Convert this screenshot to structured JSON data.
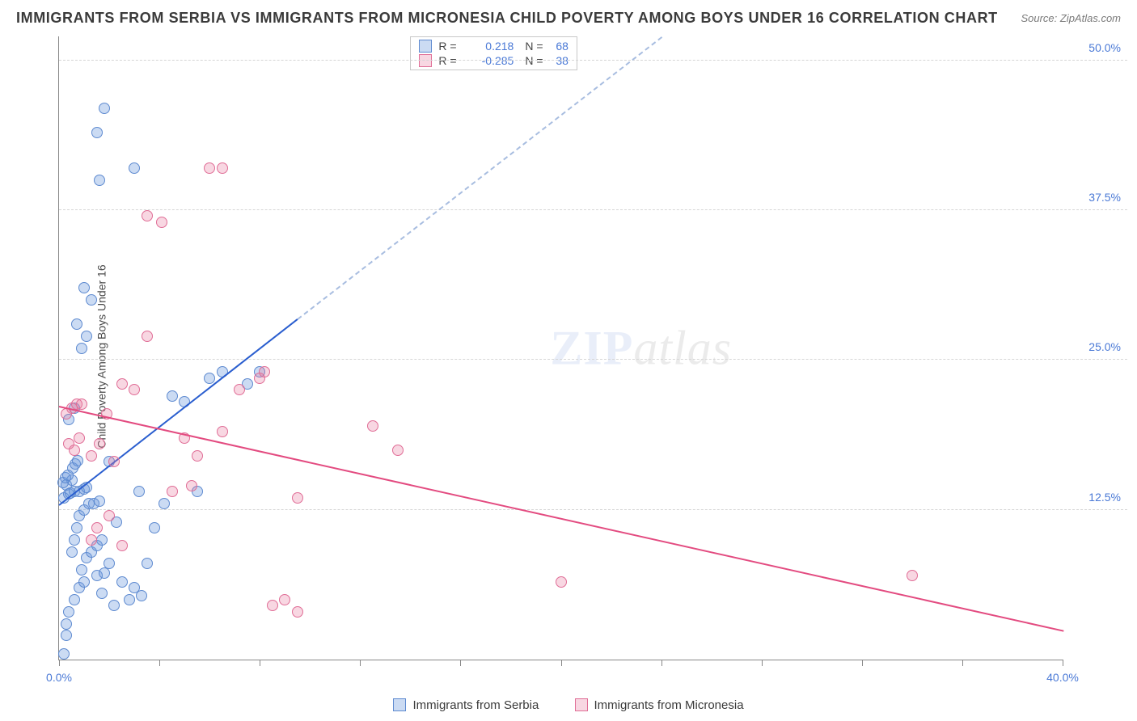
{
  "title": "IMMIGRANTS FROM SERBIA VS IMMIGRANTS FROM MICRONESIA CHILD POVERTY AMONG BOYS UNDER 16 CORRELATION CHART",
  "source": "Source: ZipAtlas.com",
  "ylabel": "Child Poverty Among Boys Under 16",
  "watermark_zip": "ZIP",
  "watermark_atlas": "atlas",
  "chart": {
    "type": "scatter",
    "xlim": [
      0,
      40
    ],
    "ylim": [
      0,
      52
    ],
    "x_ticks": [
      0,
      4,
      8,
      12,
      16,
      20,
      24,
      28,
      32,
      36,
      40
    ],
    "x_tick_labels": {
      "0": "0.0%",
      "40": "40.0%"
    },
    "y_grid": [
      12.5,
      25.0,
      37.5,
      50.0
    ],
    "y_grid_labels": [
      "12.5%",
      "25.0%",
      "37.5%",
      "50.0%"
    ],
    "background_color": "#ffffff",
    "grid_color": "#d6d6d6",
    "axis_color": "#888888",
    "label_color": "#4a79d6",
    "series": [
      {
        "name": "Immigrants from Serbia",
        "color_fill": "rgba(106,151,220,0.35)",
        "color_stroke": "#5e8ad0",
        "r": "0.218",
        "n": "68",
        "trend": {
          "x1": 0,
          "y1": 13.0,
          "x2": 9.5,
          "y2": 28.5,
          "ext_x2": 24,
          "ext_y2": 52,
          "color": "#2a5ecf",
          "dash_color": "#a8bde0"
        },
        "points": [
          [
            0.2,
            0.5
          ],
          [
            0.3,
            2
          ],
          [
            0.4,
            4
          ],
          [
            0.6,
            5
          ],
          [
            0.8,
            6
          ],
          [
            1.0,
            6.5
          ],
          [
            1.5,
            7
          ],
          [
            1.8,
            7.2
          ],
          [
            2.0,
            8
          ],
          [
            0.3,
            3
          ],
          [
            0.5,
            9
          ],
          [
            0.6,
            10
          ],
          [
            0.7,
            11
          ],
          [
            0.8,
            12
          ],
          [
            1.0,
            12.5
          ],
          [
            1.2,
            13
          ],
          [
            1.4,
            13
          ],
          [
            1.6,
            13.2
          ],
          [
            0.2,
            13.5
          ],
          [
            0.4,
            13.8
          ],
          [
            0.6,
            14
          ],
          [
            0.8,
            14
          ],
          [
            1.0,
            14.2
          ],
          [
            1.1,
            14.4
          ],
          [
            0.3,
            14.6
          ],
          [
            0.5,
            15
          ],
          [
            0.4,
            20
          ],
          [
            0.6,
            21
          ],
          [
            0.9,
            26
          ],
          [
            1.1,
            27
          ],
          [
            0.7,
            28
          ],
          [
            1.3,
            30
          ],
          [
            1.0,
            31
          ],
          [
            1.6,
            40
          ],
          [
            1.5,
            44
          ],
          [
            1.8,
            46
          ],
          [
            3.0,
            41
          ],
          [
            2.5,
            6.5
          ],
          [
            3.0,
            6
          ],
          [
            3.2,
            14
          ],
          [
            3.5,
            8
          ],
          [
            3.8,
            11
          ],
          [
            4.2,
            13
          ],
          [
            4.5,
            22
          ],
          [
            5.0,
            21.5
          ],
          [
            5.5,
            14
          ],
          [
            6.0,
            23.5
          ],
          [
            6.5,
            24
          ],
          [
            7.5,
            23
          ],
          [
            8.0,
            24
          ],
          [
            2.2,
            4.5
          ],
          [
            2.8,
            5
          ],
          [
            3.3,
            5.3
          ],
          [
            1.7,
            5.5
          ],
          [
            2.3,
            11.5
          ],
          [
            0.9,
            7.5
          ],
          [
            1.1,
            8.5
          ],
          [
            1.3,
            9
          ],
          [
            1.5,
            9.5
          ],
          [
            1.7,
            10
          ],
          [
            0.15,
            14.8
          ],
          [
            0.25,
            15.2
          ],
          [
            0.35,
            15.4
          ],
          [
            0.45,
            13.9
          ],
          [
            0.55,
            16
          ],
          [
            0.65,
            16.3
          ],
          [
            0.75,
            16.6
          ],
          [
            2.0,
            16.5
          ]
        ]
      },
      {
        "name": "Immigrants from Micronesia",
        "color_fill": "rgba(232,121,160,0.30)",
        "color_stroke": "#e06d96",
        "r": "-0.285",
        "n": "38",
        "trend": {
          "x1": 0,
          "y1": 21.2,
          "x2": 40,
          "y2": 2.5,
          "color": "#e34b80"
        },
        "points": [
          [
            0.3,
            20.5
          ],
          [
            0.5,
            21
          ],
          [
            0.7,
            21.3
          ],
          [
            0.9,
            21.3
          ],
          [
            0.4,
            18
          ],
          [
            0.6,
            17.5
          ],
          [
            0.8,
            18.5
          ],
          [
            1.3,
            10
          ],
          [
            1.5,
            11
          ],
          [
            2.0,
            12
          ],
          [
            2.5,
            9.5
          ],
          [
            1.3,
            17
          ],
          [
            1.6,
            18
          ],
          [
            1.9,
            20.5
          ],
          [
            2.5,
            23
          ],
          [
            3.0,
            22.5
          ],
          [
            3.5,
            27
          ],
          [
            3.5,
            37
          ],
          [
            4.1,
            36.5
          ],
          [
            5.0,
            18.5
          ],
          [
            5.5,
            17
          ],
          [
            6.0,
            41
          ],
          [
            6.5,
            41
          ],
          [
            6.5,
            19
          ],
          [
            7.2,
            22.5
          ],
          [
            8.0,
            23.5
          ],
          [
            8.2,
            24
          ],
          [
            9.5,
            13.5
          ],
          [
            9.0,
            5
          ],
          [
            8.5,
            4.5
          ],
          [
            9.5,
            4
          ],
          [
            12.5,
            19.5
          ],
          [
            13.5,
            17.5
          ],
          [
            20.0,
            6.5
          ],
          [
            34.0,
            7.0
          ],
          [
            4.5,
            14
          ],
          [
            5.3,
            14.5
          ],
          [
            2.2,
            16.5
          ]
        ]
      }
    ]
  },
  "legend_labels": {
    "r_prefix": "R =",
    "n_prefix": "N ="
  }
}
